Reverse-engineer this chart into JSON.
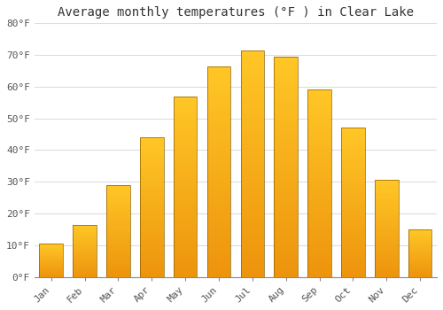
{
  "title": "Average monthly temperatures (°F ) in Clear Lake",
  "months": [
    "Jan",
    "Feb",
    "Mar",
    "Apr",
    "May",
    "Jun",
    "Jul",
    "Aug",
    "Sep",
    "Oct",
    "Nov",
    "Dec"
  ],
  "values": [
    10.5,
    16.5,
    29.0,
    44.0,
    57.0,
    66.5,
    71.5,
    69.5,
    59.0,
    47.0,
    30.5,
    15.0
  ],
  "bar_color_light": "#FFBF00",
  "bar_color_dark": "#E89000",
  "bar_edge_color": "#8B6000",
  "ylim": [
    0,
    80
  ],
  "yticks": [
    0,
    10,
    20,
    30,
    40,
    50,
    60,
    70,
    80
  ],
  "ytick_labels": [
    "0°F",
    "10°F",
    "20°F",
    "30°F",
    "40°F",
    "50°F",
    "60°F",
    "70°F",
    "80°F"
  ],
  "background_color": "#FFFFFF",
  "grid_color": "#DDDDDD",
  "title_fontsize": 10,
  "tick_fontsize": 8,
  "bar_width": 0.7,
  "gradient_steps": 100
}
